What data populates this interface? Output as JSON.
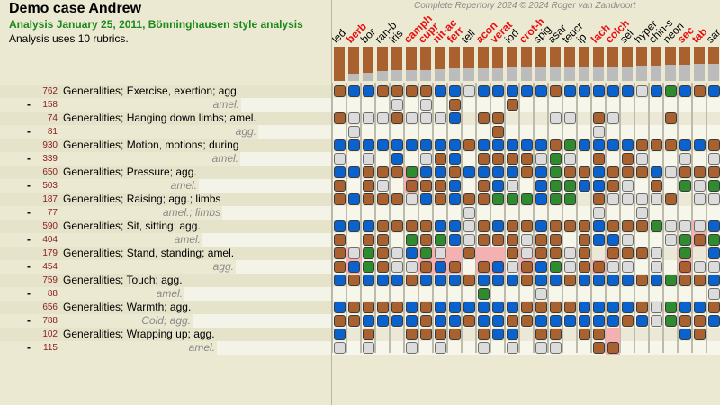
{
  "header": {
    "title": "Demo case Andrew",
    "subtitle": "Analysis January 25, 2011, Bönninghausen style analysis",
    "info": "Analysis uses 10 rubrics.",
    "copyright": "Complete Repertory 2024 © 2024 Roger van Zandvoort"
  },
  "grade_codes": {
    "b": "blue",
    "r": "brown",
    "n": "green",
    "g": "gray",
    ".": "empty"
  },
  "colors": {
    "blue": "#0a62cf",
    "brown": "#a9622f",
    "green": "#2e8b2e",
    "gray": "#dcdcdc",
    "highlight": "#f5b1b1",
    "remedy_red": "#e81010",
    "count": "#8a1c1c",
    "subtitle": "#1a8a1a",
    "score_bar_rest": "#bcbcbc"
  },
  "remedies": [
    {
      "name": "led",
      "red": false,
      "score_pct": 100
    },
    {
      "name": "berb",
      "red": true,
      "score_pct": 80
    },
    {
      "name": "bor",
      "red": false,
      "score_pct": 75
    },
    {
      "name": "ran-b",
      "red": false,
      "score_pct": 72
    },
    {
      "name": "iris",
      "red": false,
      "score_pct": 68
    },
    {
      "name": "camph",
      "red": true,
      "score_pct": 68
    },
    {
      "name": "cupr",
      "red": true,
      "score_pct": 68
    },
    {
      "name": "nit-ac",
      "red": true,
      "score_pct": 66
    },
    {
      "name": "ferr",
      "red": true,
      "score_pct": 63
    },
    {
      "name": "tell",
      "red": false,
      "score_pct": 63
    },
    {
      "name": "acon",
      "red": true,
      "score_pct": 63
    },
    {
      "name": "verat",
      "red": true,
      "score_pct": 63
    },
    {
      "name": "iod",
      "red": false,
      "score_pct": 61
    },
    {
      "name": "crot-h",
      "red": true,
      "score_pct": 61
    },
    {
      "name": "spig",
      "red": false,
      "score_pct": 61
    },
    {
      "name": "asar",
      "red": false,
      "score_pct": 58
    },
    {
      "name": "teucr",
      "red": false,
      "score_pct": 58
    },
    {
      "name": "ip",
      "red": false,
      "score_pct": 58
    },
    {
      "name": "lach",
      "red": true,
      "score_pct": 58
    },
    {
      "name": "colch",
      "red": true,
      "score_pct": 58
    },
    {
      "name": "sel",
      "red": false,
      "score_pct": 58
    },
    {
      "name": "hyper",
      "red": false,
      "score_pct": 55
    },
    {
      "name": "chin-s",
      "red": false,
      "score_pct": 55
    },
    {
      "name": "neon",
      "red": false,
      "score_pct": 53
    },
    {
      "name": "sec",
      "red": true,
      "score_pct": 53
    },
    {
      "name": "tab",
      "red": true,
      "score_pct": 50
    },
    {
      "name": "sar",
      "red": false,
      "score_pct": 50
    }
  ],
  "rubrics": [
    {
      "count": "762",
      "text": "Generalities; Exercise, exertion; agg.",
      "sub": false,
      "cells": "rbbrrrrbbgbbbbbrbbbbbgbnbrb",
      "pink": []
    },
    {
      "count": "158",
      "text": "amel.",
      "sub": true,
      "cells": "....g.g.r...r..............",
      "pink": []
    },
    {
      "count": "74",
      "text": "Generalities; Hanging down limbs; amel.",
      "sub": false,
      "cells": "rgggrgggb.rr...gg.rg...r...",
      "pink": []
    },
    {
      "count": "81",
      "text": "agg.",
      "sub": true,
      "cells": ".g.........r......g........",
      "pink": []
    },
    {
      "count": "930",
      "text": "Generalities; Motion, motions; during",
      "sub": false,
      "cells": "bbbbbbbbbrbbbbbrnbbbbrrrbbr",
      "pink": []
    },
    {
      "count": "339",
      "text": "amel.",
      "sub": true,
      "cells": "g.g.b.grb.rrrrgng.r.rg..g.g",
      "pink": []
    },
    {
      "count": "650",
      "text": "Generalities; Pressure; agg.",
      "sub": false,
      "cells": "bbrrrnbbrbbbbrbnrrbrrrbgrrr",
      "pink": [
        5
      ]
    },
    {
      "count": "503",
      "text": "amel.",
      "sub": true,
      "cells": "r.rg.rrrb.rbg.bnnbbrg.r.ngn",
      "pink": [
        5
      ]
    },
    {
      "count": "187",
      "text": "Generalities; Raising; agg.; limbs",
      "sub": false,
      "cells": "rbrrrgbrbrrnnnbnn.rggggr.gg",
      "pink": []
    },
    {
      "count": "77",
      "text": "amel.; limbs",
      "sub": true,
      "cells": ".........g........g..g.....",
      "pink": []
    },
    {
      "count": "590",
      "text": "Generalities; Sit, sitting; agg.",
      "sub": false,
      "cells": "bbbrrrrbbgrbrrbrrrbrrrngggb",
      "pink": [
        25
      ]
    },
    {
      "count": "404",
      "text": "amel.",
      "sub": true,
      "cells": "r.rr.nrnbgrrrgrr.rbbg..gnrn",
      "pink": [
        25
      ]
    },
    {
      "count": "179",
      "text": "Generalities; Stand, standing; amel.",
      "sub": false,
      "cells": "rgnrgbng.r..rgrrgr.rrrg.n.b",
      "pink": [
        1,
        6,
        7,
        8,
        10,
        11,
        13,
        19,
        24
      ]
    },
    {
      "count": "454",
      "text": "agg.",
      "sub": true,
      "cells": "rbnrggrbr.rbgrbngrrgg.g.rgg",
      "pink": [
        1,
        6,
        7,
        8,
        10,
        11,
        13,
        18,
        24
      ]
    },
    {
      "count": "759",
      "text": "Generalities; Touch; agg.",
      "sub": false,
      "cells": "brbbbrbbbrbbbrbbrbbbbrbnrrb",
      "pink": []
    },
    {
      "count": "88",
      "text": "amel.",
      "sub": true,
      "cells": "..........n...g...........g",
      "pink": []
    },
    {
      "count": "656",
      "text": "Generalities; Warmth; agg.",
      "sub": false,
      "cells": "brrrrbrbbbbbbrrrrbbbbrgnbbr",
      "pink": []
    },
    {
      "count": "788",
      "text": "Cold; agg.",
      "sub": true,
      "cells": "rrbbbbrbbrbbrrbbbbbbrbgnrrb",
      "pink": []
    },
    {
      "count": "102",
      "text": "Generalities; Wrapping up; agg.",
      "sub": false,
      "cells": "b.r..rrrr.rbb.rr.rr.....br.",
      "pink": [
        19
      ]
    },
    {
      "count": "115",
      "text": "amel.",
      "sub": true,
      "cells": "g.g..g.g..g.g.gg..rr.......",
      "pink": [
        19
      ]
    }
  ]
}
